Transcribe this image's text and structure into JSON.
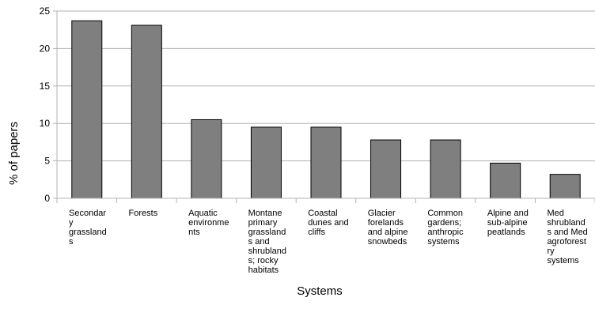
{
  "chart_data": {
    "type": "bar",
    "title": "",
    "xlabel": "Systems",
    "ylabel": "% of papers",
    "ylim": [
      0,
      25
    ],
    "yticks": [
      0,
      5,
      10,
      15,
      20,
      25
    ],
    "grid": "horizontal",
    "bar_color": "#7f7f7f",
    "categories": [
      [
        "Secondar",
        "y",
        "grassland",
        "s"
      ],
      [
        "Forests"
      ],
      [
        "Aquatic",
        "environme",
        "nts"
      ],
      [
        "Montane",
        "primary",
        "grassland",
        "s and",
        "shrubland",
        "s; rocky",
        "habitats"
      ],
      [
        "Coastal",
        "dunes and",
        "cliffs"
      ],
      [
        "Glacier",
        "forelands",
        "and alpine",
        "snowbeds"
      ],
      [
        "Common",
        "gardens;",
        "anthropic",
        "systems"
      ],
      [
        "Alpine and",
        "sub-alpine",
        "peatlands"
      ],
      [
        "Med",
        "shrubland",
        "s and Med",
        "agroforest",
        "ry",
        "systems"
      ]
    ],
    "values": [
      23.7,
      23.1,
      10.5,
      9.5,
      9.5,
      7.8,
      7.8,
      4.7,
      3.2
    ]
  }
}
